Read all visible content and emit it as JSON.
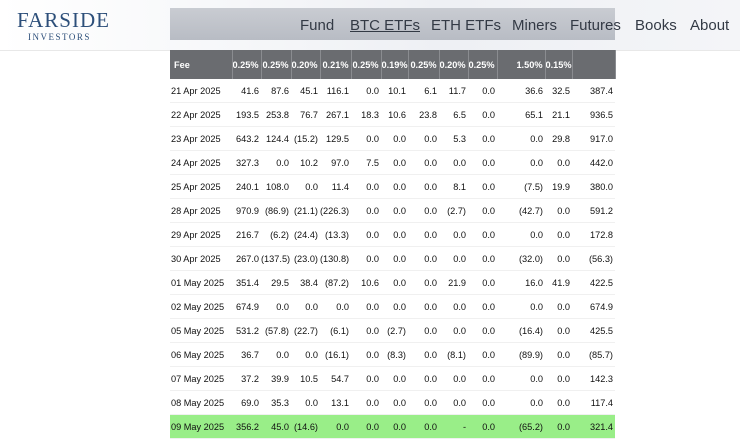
{
  "brand": {
    "name_line1": "FARSIDE",
    "name_line2": "INVESTORS"
  },
  "nav": [
    {
      "label": "Fund",
      "active": false
    },
    {
      "label": "BTC ETFs",
      "active": true
    },
    {
      "label": "ETH ETFs",
      "active": false
    },
    {
      "label": "Miners",
      "active": false
    },
    {
      "label": "Futures",
      "active": false
    },
    {
      "label": "Books",
      "active": false
    },
    {
      "label": "About",
      "active": false
    }
  ],
  "table": {
    "fee_row": {
      "label": "Fee",
      "values": [
        "0.25%",
        "0.25%",
        "0.20%",
        "0.21%",
        "0.25%",
        "0.19%",
        "0.25%",
        "0.20%",
        "0.25%",
        "1.50%",
        "0.15%",
        ""
      ]
    },
    "rows": [
      {
        "date": "21 Apr 2025",
        "values": [
          "41.6",
          "87.6",
          "45.1",
          "116.1",
          "0.0",
          "10.1",
          "6.1",
          "11.7",
          "0.0",
          "36.6",
          "32.5",
          "387.4"
        ]
      },
      {
        "date": "22 Apr 2025",
        "values": [
          "193.5",
          "253.8",
          "76.7",
          "267.1",
          "18.3",
          "10.6",
          "23.8",
          "6.5",
          "0.0",
          "65.1",
          "21.1",
          "936.5"
        ]
      },
      {
        "date": "23 Apr 2025",
        "values": [
          "643.2",
          "124.4",
          "(15.2)",
          "129.5",
          "0.0",
          "0.0",
          "0.0",
          "5.3",
          "0.0",
          "0.0",
          "29.8",
          "917.0"
        ]
      },
      {
        "date": "24 Apr 2025",
        "values": [
          "327.3",
          "0.0",
          "10.2",
          "97.0",
          "7.5",
          "0.0",
          "0.0",
          "0.0",
          "0.0",
          "0.0",
          "0.0",
          "442.0"
        ]
      },
      {
        "date": "25 Apr 2025",
        "values": [
          "240.1",
          "108.0",
          "0.0",
          "11.4",
          "0.0",
          "0.0",
          "0.0",
          "8.1",
          "0.0",
          "(7.5)",
          "19.9",
          "380.0"
        ]
      },
      {
        "date": "28 Apr 2025",
        "values": [
          "970.9",
          "(86.9)",
          "(21.1)",
          "(226.3)",
          "0.0",
          "0.0",
          "0.0",
          "(2.7)",
          "0.0",
          "(42.7)",
          "0.0",
          "591.2"
        ]
      },
      {
        "date": "29 Apr 2025",
        "values": [
          "216.7",
          "(6.2)",
          "(24.4)",
          "(13.3)",
          "0.0",
          "0.0",
          "0.0",
          "0.0",
          "0.0",
          "0.0",
          "0.0",
          "172.8"
        ]
      },
      {
        "date": "30 Apr 2025",
        "values": [
          "267.0",
          "(137.5)",
          "(23.0)",
          "(130.8)",
          "0.0",
          "0.0",
          "0.0",
          "0.0",
          "0.0",
          "(32.0)",
          "0.0",
          "(56.3)"
        ]
      },
      {
        "date": "01 May 2025",
        "values": [
          "351.4",
          "29.5",
          "38.4",
          "(87.2)",
          "10.6",
          "0.0",
          "0.0",
          "21.9",
          "0.0",
          "16.0",
          "41.9",
          "422.5"
        ]
      },
      {
        "date": "02 May 2025",
        "values": [
          "674.9",
          "0.0",
          "0.0",
          "0.0",
          "0.0",
          "0.0",
          "0.0",
          "0.0",
          "0.0",
          "0.0",
          "0.0",
          "674.9"
        ]
      },
      {
        "date": "05 May 2025",
        "values": [
          "531.2",
          "(57.8)",
          "(22.7)",
          "(6.1)",
          "0.0",
          "(2.7)",
          "0.0",
          "0.0",
          "0.0",
          "(16.4)",
          "0.0",
          "425.5"
        ]
      },
      {
        "date": "06 May 2025",
        "values": [
          "36.7",
          "0.0",
          "0.0",
          "(16.1)",
          "0.0",
          "(8.3)",
          "0.0",
          "(8.1)",
          "0.0",
          "(89.9)",
          "0.0",
          "(85.7)"
        ]
      },
      {
        "date": "07 May 2025",
        "values": [
          "37.2",
          "39.9",
          "10.5",
          "54.7",
          "0.0",
          "0.0",
          "0.0",
          "0.0",
          "0.0",
          "0.0",
          "0.0",
          "142.3"
        ]
      },
      {
        "date": "08 May 2025",
        "values": [
          "69.0",
          "35.3",
          "0.0",
          "13.1",
          "0.0",
          "0.0",
          "0.0",
          "0.0",
          "0.0",
          "0.0",
          "0.0",
          "117.4"
        ]
      },
      {
        "date": "09 May 2025",
        "values": [
          "356.2",
          "45.0",
          "(14.6)",
          "0.0",
          "0.0",
          "0.0",
          "0.0",
          "-",
          "0.0",
          "(65.2)",
          "0.0",
          "321.4"
        ],
        "highlight": true,
        "highlight_color": "#99ee88"
      }
    ]
  },
  "colors": {
    "brand": "#2d4f7a",
    "negative": "#e0201a",
    "fee_row_bg": "#6a6c70",
    "highlight": "#99ee88"
  }
}
